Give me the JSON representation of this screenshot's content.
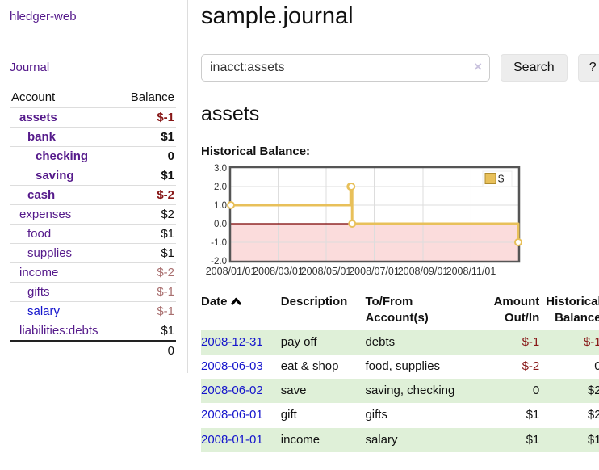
{
  "palette": {
    "purple": "#551a8b",
    "blue": "#1414cc",
    "negStrong": "#871717",
    "negFaded": "#a96f6f",
    "green": "#dff0d8"
  },
  "app": {
    "brand": "hledger-web",
    "nav_journal": "Journal"
  },
  "sidebar": {
    "table": {
      "col_account": "Account",
      "col_balance": "Balance",
      "rows": [
        {
          "name": "assets",
          "indent": 1,
          "bold": true,
          "balance": "$-1"
        },
        {
          "name": "bank",
          "indent": 2,
          "bold": true,
          "balance": "$1"
        },
        {
          "name": "checking",
          "indent": 3,
          "bold": true,
          "balance": "0"
        },
        {
          "name": "saving",
          "indent": 3,
          "bold": true,
          "balance": "$1"
        },
        {
          "name": "cash",
          "indent": 2,
          "bold": true,
          "balance": "$-2"
        },
        {
          "name": "expenses",
          "indent": 1,
          "bold": false,
          "balance": "$2"
        },
        {
          "name": "food",
          "indent": 2,
          "bold": false,
          "balance": "$1"
        },
        {
          "name": "supplies",
          "indent": 2,
          "bold": false,
          "balance": "$1"
        },
        {
          "name": "income",
          "indent": 1,
          "bold": false,
          "balance": "$-2"
        },
        {
          "name": "gifts",
          "indent": 2,
          "bold": false,
          "balance": "$-1"
        },
        {
          "name": "salary",
          "indent": 2,
          "bold": false,
          "balance": "$-1",
          "unvisited": true
        },
        {
          "name": "liabilities:debts",
          "indent": 1,
          "bold": false,
          "balance": "$1"
        }
      ],
      "total": "0"
    }
  },
  "main": {
    "title": "sample.journal",
    "search": {
      "value": "inacct:assets",
      "clear_icon": "×",
      "button": "Search",
      "help": "?"
    },
    "account_heading": "assets",
    "chart_heading": "Historical Balance:"
  },
  "chart_data": {
    "type": "line",
    "title": "Historical Balance:",
    "series": [
      {
        "name": "$",
        "step": true,
        "points": [
          [
            "2008-01-01",
            1
          ],
          [
            "2008-06-01",
            2
          ],
          [
            "2008-06-02",
            2
          ],
          [
            "2008-06-03",
            0
          ],
          [
            "2008-12-31",
            -1
          ]
        ]
      }
    ],
    "x_range": [
      "2008-01-01",
      "2008-12-31"
    ],
    "x_ticks": [
      "2008/01/01",
      "2008/03/01",
      "2008/05/01",
      "2008/07/01",
      "2008/09/01",
      "2008/11/01"
    ],
    "y_ticks": [
      3.0,
      2.0,
      1.0,
      0.0,
      -1.0,
      -2.0
    ],
    "ylim": [
      -2,
      3
    ],
    "grid": true,
    "legend": {
      "label": "$",
      "position": "top-right"
    },
    "line_color": "#e8c05a",
    "marker_fill": "#ffffff",
    "zero_line_color": "#7a0000",
    "negative_region_color": "#fbdcdc",
    "grid_color": "#dddddd",
    "chart_border_color": "#555555",
    "tick_label_color": "#333333"
  },
  "register": {
    "headers": [
      {
        "label": "Date",
        "sort": true
      },
      {
        "label": "Description"
      },
      {
        "label": "To/From Account(s)"
      },
      {
        "label": "Amount Out/In"
      },
      {
        "label": "Historical Balance"
      }
    ],
    "rows": [
      {
        "date": "2008-12-31",
        "desc": "pay off",
        "accounts": "debts",
        "amount": "$-1",
        "balance": "$-1"
      },
      {
        "date": "2008-06-03",
        "desc": "eat & shop",
        "accounts": "food, supplies",
        "amount": "$-2",
        "balance": "0"
      },
      {
        "date": "2008-06-02",
        "desc": "save",
        "accounts": "saving, checking",
        "amount": "0",
        "balance": "$2"
      },
      {
        "date": "2008-06-01",
        "desc": "gift",
        "accounts": "gifts",
        "amount": "$1",
        "balance": "$2"
      },
      {
        "date": "2008-01-01",
        "desc": "income",
        "accounts": "salary",
        "amount": "$1",
        "balance": "$1"
      }
    ]
  }
}
